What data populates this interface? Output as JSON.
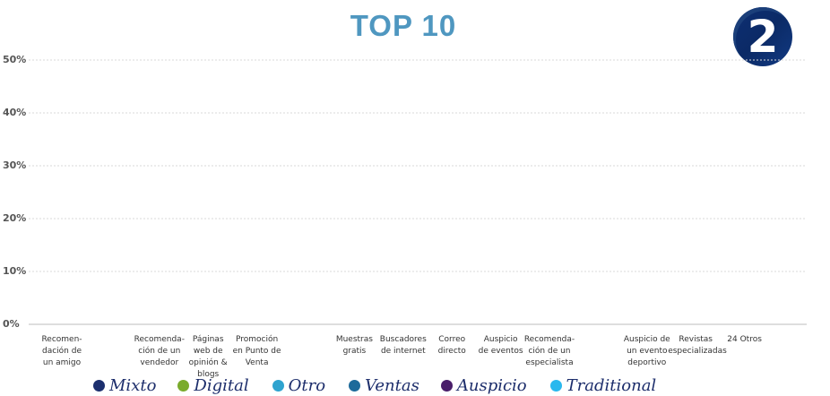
{
  "header": {
    "title": "TOP 10",
    "badge": "2"
  },
  "chart_data": {
    "type": "bar",
    "ylim": [
      0,
      50
    ],
    "yticks": [
      "0%",
      "10%",
      "20%",
      "30%",
      "40%",
      "50%"
    ],
    "categories": [
      "Recomen-\ndación de\nun amigo",
      "",
      "Recomenda-\nción de un\nvendedor",
      "Páginas\nweb de\nopinión & blogs",
      "Promoción\nen Punto de\nVenta",
      "",
      "Muestras\ngratis",
      "Buscadores\nde internet",
      "Correo\ndirecto",
      "Auspicio\nde eventos",
      "Recomenda-\nción de un\nespecialista",
      "",
      "Auspicio de\nun evento\ndeportivo",
      "Revistas\nespecializadas",
      "24 Otros"
    ],
    "grid": true,
    "legend_position": "bottom",
    "legend": [
      {
        "name": "Mixto",
        "color": "#1c2f6e"
      },
      {
        "name": "Digital",
        "color": "#7aab2c"
      },
      {
        "name": "Otro",
        "color": "#2ea3cf"
      },
      {
        "name": "Ventas",
        "color": "#1d6a9a"
      },
      {
        "name": "Auspicio",
        "color": "#4a1e6a"
      },
      {
        "name": "Traditional",
        "color": "#2ab8ee"
      }
    ]
  }
}
